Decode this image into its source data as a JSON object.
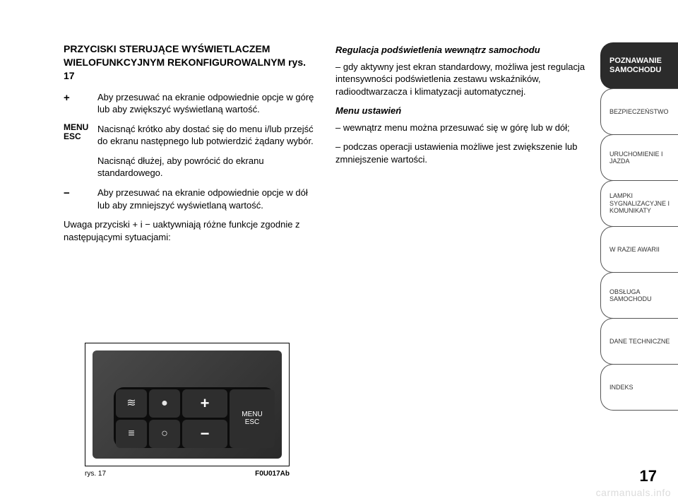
{
  "page": {
    "number": "17",
    "watermark": "carmanuals.info"
  },
  "left": {
    "title": "PRZYCISKI STERUJĄCE WYŚWIETLACZEM WIELOFUNKCYJNYM REKONFIGUROWALNYM rys. 17",
    "controls": [
      {
        "symbol": "+",
        "desc": "Aby przesuwać na ekranie odpowiednie opcje w górę lub aby zwiększyć wyświetlaną wartość."
      },
      {
        "symbol": "MENU\nESC",
        "desc": "Nacisnąć krótko aby dostać się do menu i/lub przejść do ekranu następnego lub potwierdzić żądany wybór."
      },
      {
        "symbol": "",
        "desc": "Nacisnąć dłużej, aby powrócić do ekranu standardowego."
      },
      {
        "symbol": "−",
        "desc": "Aby przesuwać na ekranie odpowiednie opcje w dół lub aby zmniejszyć wyświetlaną wartość."
      }
    ],
    "note": "Uwaga przyciski + i − uaktywniają różne funkcje zgodnie z następującymi sytuacjami:"
  },
  "right": {
    "sub1_title": "Regulacja podświetlenia wewnątrz samochodu",
    "sub1_text": "– gdy aktywny jest ekran standardowy, możliwa jest regulacja intensywności podświetlenia zestawu wskaźników, radioodtwarzacza i klimatyzacji automatycznej.",
    "sub2_title": "Menu ustawień",
    "sub2_text1": "– wewnątrz menu można przesuwać się w górę lub w dół;",
    "sub2_text2": "– podczas operacji ustawienia możliwe jest zwiększenie lub zmniejszenie wartości."
  },
  "figure": {
    "caption_left": "rys. 17",
    "caption_right": "F0U017Ab",
    "menu_top": "MENU",
    "menu_bottom": "ESC",
    "plus": "+",
    "minus": "−",
    "icons": {
      "front_fog": "≋",
      "low_beam": "●",
      "rear_fog": "≡",
      "parking": "○"
    },
    "colors": {
      "panel_bg_from": "#4a4a4a",
      "panel_bg_to": "#2a2a2a",
      "cluster_bg": "#0c0c0c",
      "button_bg": "#2e2e2e",
      "button_fg": "#e6e6e6"
    }
  },
  "tabs": [
    {
      "label": "POZNAWANIE SAMOCHODU",
      "active": true
    },
    {
      "label": "BEZPIECZEŃSTWO",
      "active": false
    },
    {
      "label": "URUCHOMIENIE I JAZDA",
      "active": false
    },
    {
      "label": "LAMPKI SYGNALIZACYJNE I KOMUNIKATY",
      "active": false
    },
    {
      "label": "W RAZIE AWARII",
      "active": false
    },
    {
      "label": "OBSŁUGA SAMOCHODU",
      "active": false
    },
    {
      "label": "DANE TECHNICZNE",
      "active": false
    },
    {
      "label": "INDEKS",
      "active": false
    }
  ]
}
